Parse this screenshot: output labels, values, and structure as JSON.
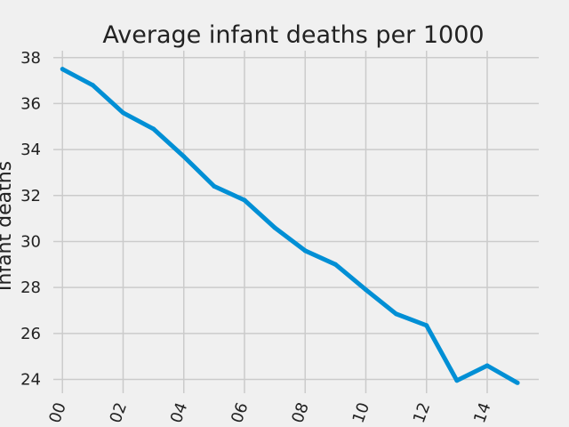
{
  "chart_data": {
    "type": "line",
    "title": "Average infant deaths per 1000",
    "xlabel": "",
    "ylabel": "Infant deaths",
    "x": [
      "00",
      "01",
      "02",
      "03",
      "04",
      "05",
      "06",
      "07",
      "08",
      "09",
      "10",
      "11",
      "12",
      "13",
      "14",
      "15"
    ],
    "xticks": [
      "00",
      "02",
      "04",
      "06",
      "08",
      "10",
      "12",
      "14"
    ],
    "yticks": [
      24,
      26,
      28,
      30,
      32,
      34,
      36,
      38
    ],
    "ylim": [
      23.4,
      38.3
    ],
    "xlim": [
      -0.3,
      15.7
    ],
    "grid": true,
    "series": [
      {
        "values": [
          37.5,
          36.8,
          35.6,
          34.9,
          33.7,
          32.4,
          31.8,
          30.6,
          29.6,
          29.0,
          27.9,
          26.85,
          26.35,
          23.95,
          24.6,
          23.85
        ],
        "color": "#008fd5"
      }
    ]
  }
}
